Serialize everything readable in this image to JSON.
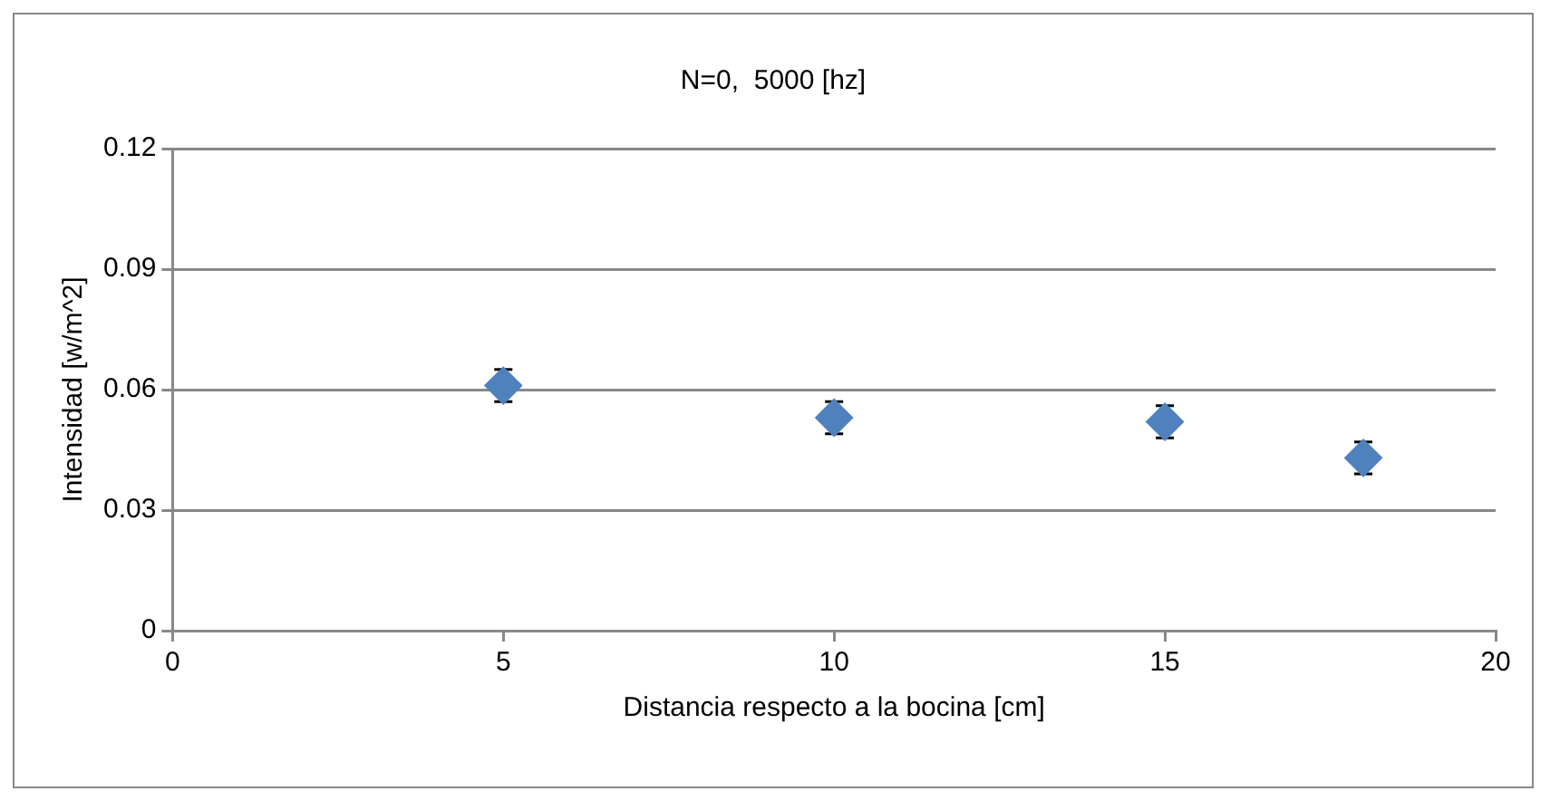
{
  "chart_data": {
    "type": "scatter",
    "title": "N=0,  5000 [hz]",
    "xlabel": "Distancia respecto a la bocina [cm]",
    "ylabel": "Intensidad [w/m^2]",
    "x": [
      5,
      10,
      15,
      18
    ],
    "series": [
      {
        "color": "#4f81bd",
        "values": [
          0.061,
          0.053,
          0.052,
          0.043
        ],
        "errors": [
          0.004,
          0.004,
          0.004,
          0.004
        ]
      }
    ],
    "xlim": [
      0,
      20
    ],
    "xticks": [
      0,
      5,
      10,
      15,
      20
    ],
    "ylim": [
      0,
      0.12
    ],
    "yticks": [
      0,
      0.03,
      0.06,
      0.09,
      0.12
    ],
    "grid": "y",
    "legend": false,
    "marker": "diamond"
  }
}
